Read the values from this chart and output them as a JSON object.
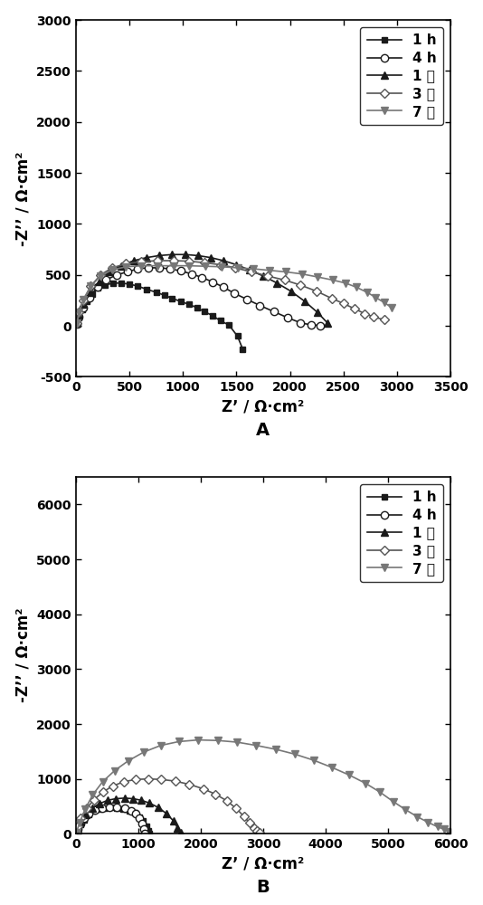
{
  "panel_A": {
    "series": [
      {
        "label": "1 h",
        "color": "#1a1a1a",
        "marker": "s",
        "markerface": "#1a1a1a",
        "linestyle": "-",
        "linewidth": 1.2,
        "markersize": 5,
        "x": [
          10,
          30,
          60,
          100,
          150,
          200,
          270,
          350,
          420,
          500,
          580,
          660,
          750,
          830,
          900,
          980,
          1060,
          1130,
          1200,
          1280,
          1350,
          1430,
          1510,
          1560
        ],
        "y": [
          20,
          80,
          160,
          240,
          310,
          370,
          400,
          420,
          420,
          410,
          390,
          360,
          330,
          300,
          270,
          240,
          210,
          180,
          140,
          100,
          50,
          10,
          -100,
          -230
        ]
      },
      {
        "label": "4 h",
        "color": "#1a1a1a",
        "marker": "o",
        "markerface": "white",
        "linestyle": "-",
        "linewidth": 1.2,
        "markersize": 6,
        "x": [
          10,
          30,
          70,
          130,
          200,
          280,
          380,
          480,
          580,
          680,
          780,
          880,
          980,
          1080,
          1180,
          1280,
          1380,
          1480,
          1600,
          1720,
          1850,
          1980,
          2100,
          2200,
          2280
        ],
        "y": [
          20,
          90,
          180,
          280,
          380,
          450,
          500,
          530,
          560,
          570,
          570,
          560,
          540,
          510,
          475,
          430,
          380,
          320,
          260,
          200,
          140,
          80,
          30,
          10,
          5
        ]
      },
      {
        "label": "1 天",
        "color": "#1a1a1a",
        "marker": "^",
        "markerface": "#1a1a1a",
        "linestyle": "-",
        "linewidth": 1.2,
        "markersize": 6,
        "x": [
          10,
          30,
          70,
          140,
          220,
          310,
          420,
          540,
          660,
          780,
          900,
          1020,
          1140,
          1260,
          1380,
          1500,
          1620,
          1750,
          1880,
          2010,
          2140,
          2260,
          2350
        ],
        "y": [
          25,
          110,
          210,
          330,
          440,
          530,
          590,
          640,
          670,
          690,
          700,
          700,
          690,
          670,
          640,
          600,
          550,
          490,
          420,
          340,
          240,
          130,
          30
        ]
      },
      {
        "label": "3 天",
        "color": "#555555",
        "marker": "D",
        "markerface": "white",
        "linestyle": "-",
        "linewidth": 1.2,
        "markersize": 5,
        "x": [
          10,
          30,
          70,
          140,
          230,
          340,
          470,
          610,
          760,
          910,
          1060,
          1200,
          1350,
          1490,
          1640,
          1790,
          1950,
          2100,
          2250,
          2390,
          2500,
          2600,
          2700,
          2780,
          2880
        ],
        "y": [
          30,
          130,
          250,
          390,
          500,
          570,
          610,
          630,
          640,
          640,
          635,
          620,
          600,
          570,
          530,
          490,
          450,
          400,
          340,
          270,
          220,
          170,
          120,
          90,
          60
        ]
      },
      {
        "label": "7 天",
        "color": "#777777",
        "marker": "v",
        "markerface": "#777777",
        "linestyle": "-",
        "linewidth": 1.2,
        "markersize": 6,
        "x": [
          10,
          30,
          70,
          140,
          230,
          340,
          470,
          610,
          760,
          910,
          1060,
          1210,
          1360,
          1510,
          1660,
          1810,
          1960,
          2110,
          2260,
          2400,
          2520,
          2620,
          2720,
          2800,
          2880,
          2950
        ],
        "y": [
          30,
          130,
          260,
          390,
          490,
          550,
          580,
          590,
          590,
          590,
          590,
          585,
          580,
          570,
          560,
          545,
          530,
          510,
          480,
          450,
          420,
          380,
          330,
          280,
          230,
          180
        ]
      }
    ],
    "xlabel": "Z’ / Ω·cm²",
    "ylabel": "-Z’’ / Ω·cm²",
    "xlim": [
      0,
      3500
    ],
    "ylim": [
      -500,
      3000
    ],
    "xticks": [
      0,
      500,
      1000,
      1500,
      2000,
      2500,
      3000,
      3500
    ],
    "yticks": [
      -500,
      0,
      500,
      1000,
      1500,
      2000,
      2500,
      3000
    ],
    "panel_label": "A"
  },
  "panel_B": {
    "series": [
      {
        "label": "1 h",
        "color": "#1a1a1a",
        "marker": "s",
        "markerface": "#1a1a1a",
        "linestyle": "-",
        "linewidth": 1.2,
        "markersize": 5,
        "x": [
          10,
          30,
          70,
          130,
          200,
          280,
          370,
          460,
          560,
          660,
          760,
          850,
          940,
          1020,
          1080,
          1130,
          1160,
          1180
        ],
        "y": [
          20,
          80,
          170,
          260,
          350,
          410,
          450,
          470,
          480,
          470,
          450,
          420,
          380,
          310,
          230,
          140,
          50,
          10
        ]
      },
      {
        "label": "4 h",
        "color": "#1a1a1a",
        "marker": "o",
        "markerface": "white",
        "linestyle": "-",
        "linewidth": 1.2,
        "markersize": 6,
        "x": [
          10,
          30,
          70,
          130,
          210,
          310,
          420,
          540,
          660,
          780,
          880,
          960,
          1020,
          1060,
          1090,
          1110
        ],
        "y": [
          20,
          90,
          180,
          280,
          370,
          430,
          460,
          480,
          480,
          460,
          420,
          360,
          280,
          180,
          80,
          10
        ]
      },
      {
        "label": "1 天",
        "color": "#1a1a1a",
        "marker": "^",
        "markerface": "#1a1a1a",
        "linestyle": "-",
        "linewidth": 1.2,
        "markersize": 6,
        "x": [
          10,
          30,
          80,
          160,
          260,
          380,
          510,
          640,
          780,
          920,
          1050,
          1180,
          1320,
          1450,
          1560,
          1630,
          1680
        ],
        "y": [
          25,
          110,
          220,
          350,
          470,
          550,
          610,
          640,
          650,
          640,
          610,
          560,
          480,
          370,
          240,
          110,
          30
        ]
      },
      {
        "label": "3 天",
        "color": "#555555",
        "marker": "D",
        "markerface": "white",
        "linestyle": "-",
        "linewidth": 1.2,
        "markersize": 5,
        "x": [
          10,
          30,
          80,
          170,
          290,
          430,
          590,
          770,
          960,
          1160,
          1370,
          1590,
          1820,
          2040,
          2240,
          2420,
          2570,
          2690,
          2780,
          2850,
          2900,
          2940
        ],
        "y": [
          30,
          140,
          290,
          460,
          620,
          760,
          870,
          950,
          990,
          1000,
          990,
          960,
          900,
          820,
          720,
          600,
          460,
          320,
          200,
          110,
          50,
          20
        ]
      },
      {
        "label": "7 天",
        "color": "#777777",
        "marker": "v",
        "markerface": "#777777",
        "linestyle": "-",
        "linewidth": 1.2,
        "markersize": 6,
        "x": [
          10,
          60,
          150,
          270,
          430,
          620,
          840,
          1090,
          1360,
          1650,
          1960,
          2270,
          2580,
          2890,
          3200,
          3510,
          3810,
          4100,
          4380,
          4640,
          4870,
          5080,
          5280,
          5470,
          5640,
          5790,
          5900,
          5970,
          6020
        ],
        "y": [
          30,
          200,
          450,
          710,
          950,
          1150,
          1330,
          1490,
          1610,
          1680,
          1710,
          1700,
          1670,
          1610,
          1540,
          1450,
          1340,
          1210,
          1070,
          920,
          760,
          590,
          440,
          310,
          210,
          130,
          80,
          40,
          10
        ]
      }
    ],
    "xlabel": "Z’ / Ω·cm²",
    "ylabel": "-Z’’ / Ω·cm²",
    "xlim": [
      0,
      6000
    ],
    "ylim": [
      0,
      6500
    ],
    "xticks": [
      0,
      1000,
      2000,
      3000,
      4000,
      5000,
      6000
    ],
    "yticks": [
      0,
      1000,
      2000,
      3000,
      4000,
      5000,
      6000
    ],
    "panel_label": "B"
  }
}
